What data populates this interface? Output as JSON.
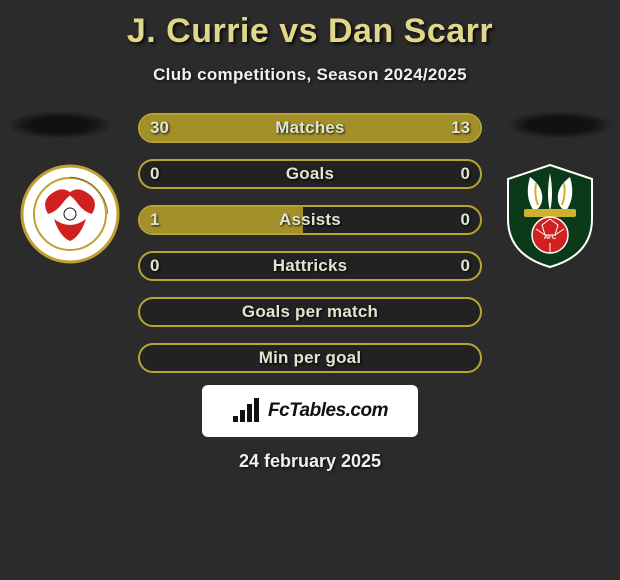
{
  "colors": {
    "title": "#e1d78a",
    "subtitle": "#f0f0f0",
    "bar_border": "#b8a530",
    "bar_fill": "#a49028",
    "bar_text": "#dfe6cf",
    "branding_bg": "#ffffff",
    "branding_text": "#111111"
  },
  "title": "J. Currie vs Dan Scarr",
  "subtitle": "Club competitions, Season 2024/2025",
  "bars": [
    {
      "label": "Matches",
      "left": "30",
      "right": "13",
      "left_pct": 68,
      "right_pct": 32
    },
    {
      "label": "Goals",
      "left": "0",
      "right": "0",
      "left_pct": 0,
      "right_pct": 0
    },
    {
      "label": "Assists",
      "left": "1",
      "right": "0",
      "left_pct": 48,
      "right_pct": 0
    },
    {
      "label": "Hattricks",
      "left": "0",
      "right": "0",
      "left_pct": 0,
      "right_pct": 0
    },
    {
      "label": "Goals per match",
      "left": "",
      "right": "",
      "left_pct": 0,
      "right_pct": 0
    },
    {
      "label": "Min per goal",
      "left": "",
      "right": "",
      "left_pct": 0,
      "right_pct": 0
    }
  ],
  "branding": "FcTables.com",
  "date": "24 february 2025",
  "crest_left": {
    "name": "leyton-orient-crest",
    "outer": "#ffffff",
    "ring": "#c0a030",
    "field": "#ffffff",
    "figure": "#d02020",
    "text": "#1a1a1a"
  },
  "crest_right": {
    "name": "wrexham-crest",
    "outer": "#0a3a1a",
    "trim": "#ffffff",
    "plume": "#ffffff",
    "plume_stripe": "#d0b030",
    "ball": "#d02020",
    "ball_text": "#ffffff"
  }
}
